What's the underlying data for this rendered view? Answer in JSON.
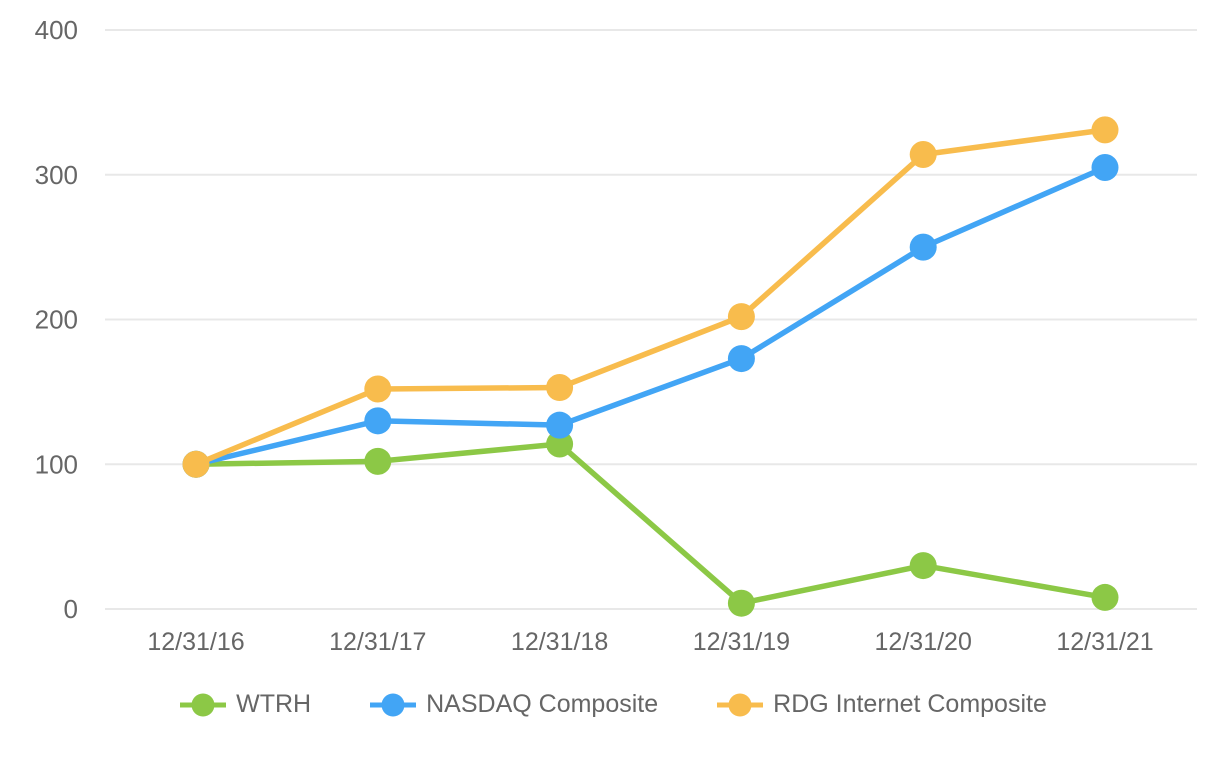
{
  "chart_data": {
    "type": "line",
    "title": "",
    "xlabel": "",
    "ylabel": "",
    "categories": [
      "12/31/16",
      "12/31/17",
      "12/31/18",
      "12/31/19",
      "12/31/20",
      "12/31/21"
    ],
    "series": [
      {
        "name": "WTRH",
        "color": "#8CC846",
        "values": [
          100,
          102,
          114,
          4,
          30,
          8
        ]
      },
      {
        "name": "NASDAQ Composite",
        "color": "#42A5F5",
        "values": [
          100,
          130,
          127,
          173,
          250,
          305
        ]
      },
      {
        "name": "RDG Internet Composite",
        "color": "#F8BC4D",
        "values": [
          100,
          152,
          153,
          202,
          314,
          331
        ]
      }
    ],
    "yticks": [
      0,
      100,
      200,
      300,
      400
    ],
    "ytick_labels": [
      "0",
      "100",
      "200",
      "300",
      "400"
    ],
    "ylim": [
      0,
      400
    ],
    "grid": true,
    "legend_position": "bottom",
    "gridline_color": "#E8E8E8",
    "axis_label_color": "#666666",
    "background_color": "#FFFFFF"
  }
}
